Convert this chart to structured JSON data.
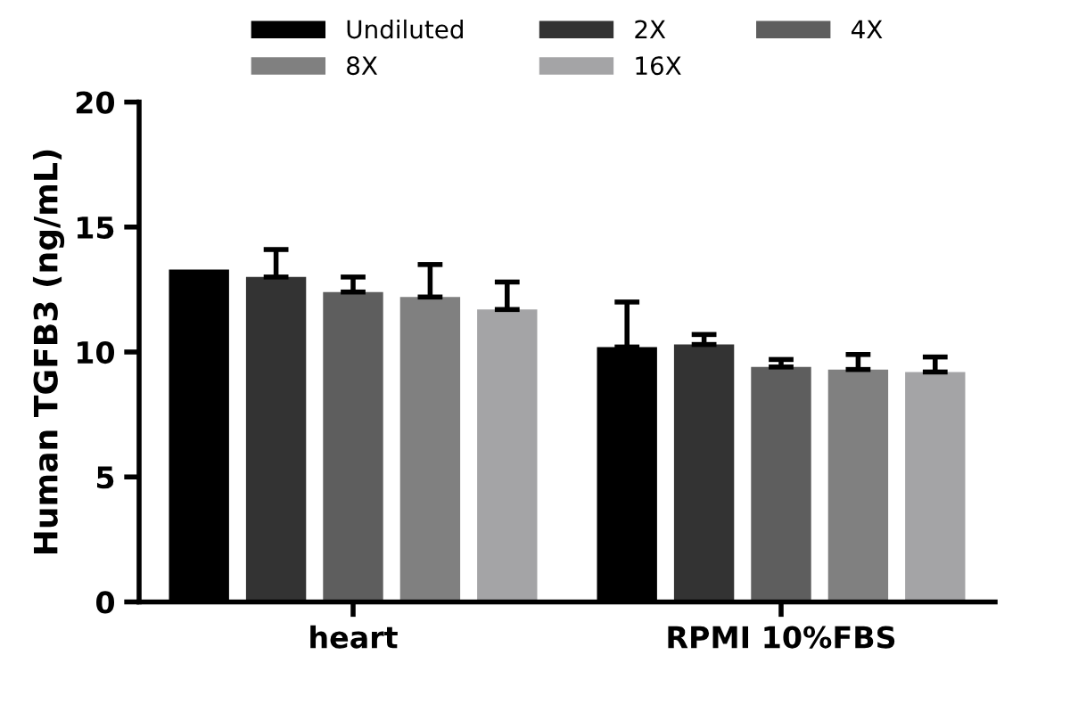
{
  "chart_data": {
    "type": "bar",
    "ylabel": "Human TGFB3 (ng/mL)",
    "categories": [
      "heart",
      "RPMI 10%FBS"
    ],
    "series": [
      {
        "name": "Undiluted",
        "color": "#000000",
        "values": [
          13.3,
          10.2
        ],
        "errors": [
          null,
          [
            10.2,
            12.0
          ]
        ]
      },
      {
        "name": "2X",
        "color": "#333333",
        "values": [
          13.0,
          10.3
        ],
        "errors": [
          [
            13.0,
            14.1
          ],
          [
            10.3,
            10.7
          ]
        ]
      },
      {
        "name": "4X",
        "color": "#5e5e5e",
        "values": [
          12.4,
          9.4
        ],
        "errors": [
          [
            12.4,
            13.0
          ],
          [
            9.4,
            9.7
          ]
        ]
      },
      {
        "name": "8X",
        "color": "#808080",
        "values": [
          12.2,
          9.3
        ],
        "errors": [
          [
            12.2,
            13.5
          ],
          [
            9.3,
            9.9
          ]
        ]
      },
      {
        "name": "16X",
        "color": "#a4a4a6",
        "values": [
          11.7,
          9.2
        ],
        "errors": [
          [
            11.7,
            12.8
          ],
          [
            9.2,
            9.8
          ]
        ]
      }
    ],
    "ylim": [
      0,
      20
    ],
    "yticks": [
      0,
      5,
      10,
      15,
      20
    ],
    "grid": false,
    "legend": "top"
  }
}
